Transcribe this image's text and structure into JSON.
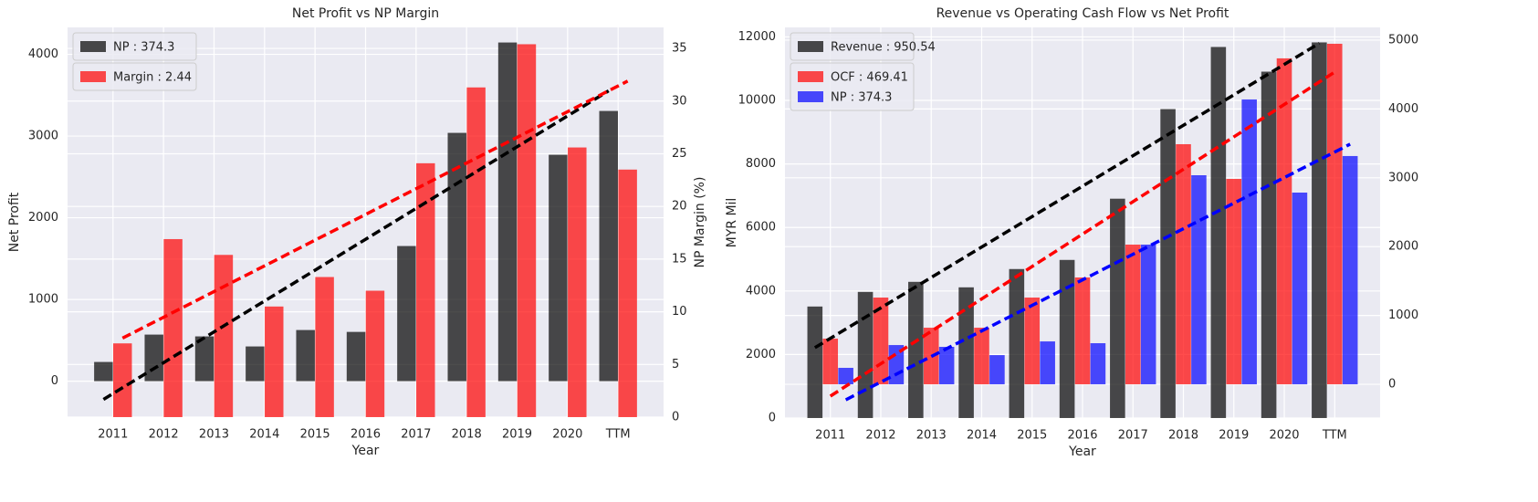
{
  "chart_data": [
    {
      "type": "bar",
      "title": "Net Profit vs NP Margin",
      "x_label": "Year",
      "y_label": "Net Profit",
      "y2_label": "NP Margin (%)",
      "categories": [
        "2011",
        "2012",
        "2013",
        "2014",
        "2015",
        "2016",
        "2017",
        "2018",
        "2019",
        "2020",
        "TTM"
      ],
      "series": [
        {
          "name": "NP : 374.3",
          "color": "#000000",
          "axis": "y",
          "values": [
            235,
            570,
            548,
            425,
            626,
            603,
            1654,
            3039,
            4145,
            2771,
            3307
          ],
          "trend": [
            -223,
            3553
          ]
        },
        {
          "name": "Margin : 2.44",
          "color": "#ff0000",
          "axis": "y2",
          "values": [
            7.0,
            16.9,
            15.4,
            10.5,
            13.3,
            12.0,
            24.1,
            31.3,
            35.4,
            25.6,
            23.5
          ],
          "trend": [
            7.5,
            31.9
          ]
        }
      ],
      "ylim": [
        -440,
        4330
      ],
      "yticks": [
        0,
        1000,
        2000,
        3000,
        4000
      ],
      "y2lim": [
        0,
        37
      ],
      "y2ticks": [
        0,
        5,
        10,
        15,
        20,
        25,
        30,
        35
      ],
      "grid": true,
      "legend_loc": "upper left"
    },
    {
      "type": "bar",
      "title": "Revenue vs Operating Cash Flow vs Net Profit",
      "x_label": "Year",
      "y_label": "MYR Mil",
      "categories": [
        "2011",
        "2012",
        "2013",
        "2014",
        "2015",
        "2016",
        "2017",
        "2018",
        "2019",
        "2020",
        "TTM"
      ],
      "series": [
        {
          "name": "Revenue : 950.54",
          "color": "#000000",
          "axis": "y",
          "values": [
            3511,
            3971,
            4288,
            4115,
            4691,
            4978,
            6906,
            9727,
            11683,
            10906,
            11827
          ],
          "trend": [
            2216,
            11799
          ]
        },
        {
          "name": "OCF : 469.41",
          "color": "#ff0000",
          "axis": "y2",
          "values": [
            663,
            1260,
            822,
            822,
            1260,
            1552,
            2029,
            3488,
            2984,
            4735,
            4947
          ],
          "trend": [
            -172,
            4536
          ]
        },
        {
          "name": "NP : 374.3",
          "color": "#0000ff",
          "axis": "y2",
          "values": [
            239,
            570,
            544,
            424,
            623,
            597,
            2029,
            3037,
            4138,
            2785,
            3316
          ],
          "trend": [
            -225,
            3488
          ]
        }
      ],
      "ylim": [
        0,
        12300
      ],
      "yticks": [
        0,
        2000,
        4000,
        6000,
        8000,
        10000,
        12000
      ],
      "y2lim": [
        -490,
        5185
      ],
      "y2ticks": [
        0,
        1000,
        2000,
        3000,
        4000,
        5000
      ],
      "grid": true,
      "legend_loc": "upper left"
    }
  ]
}
